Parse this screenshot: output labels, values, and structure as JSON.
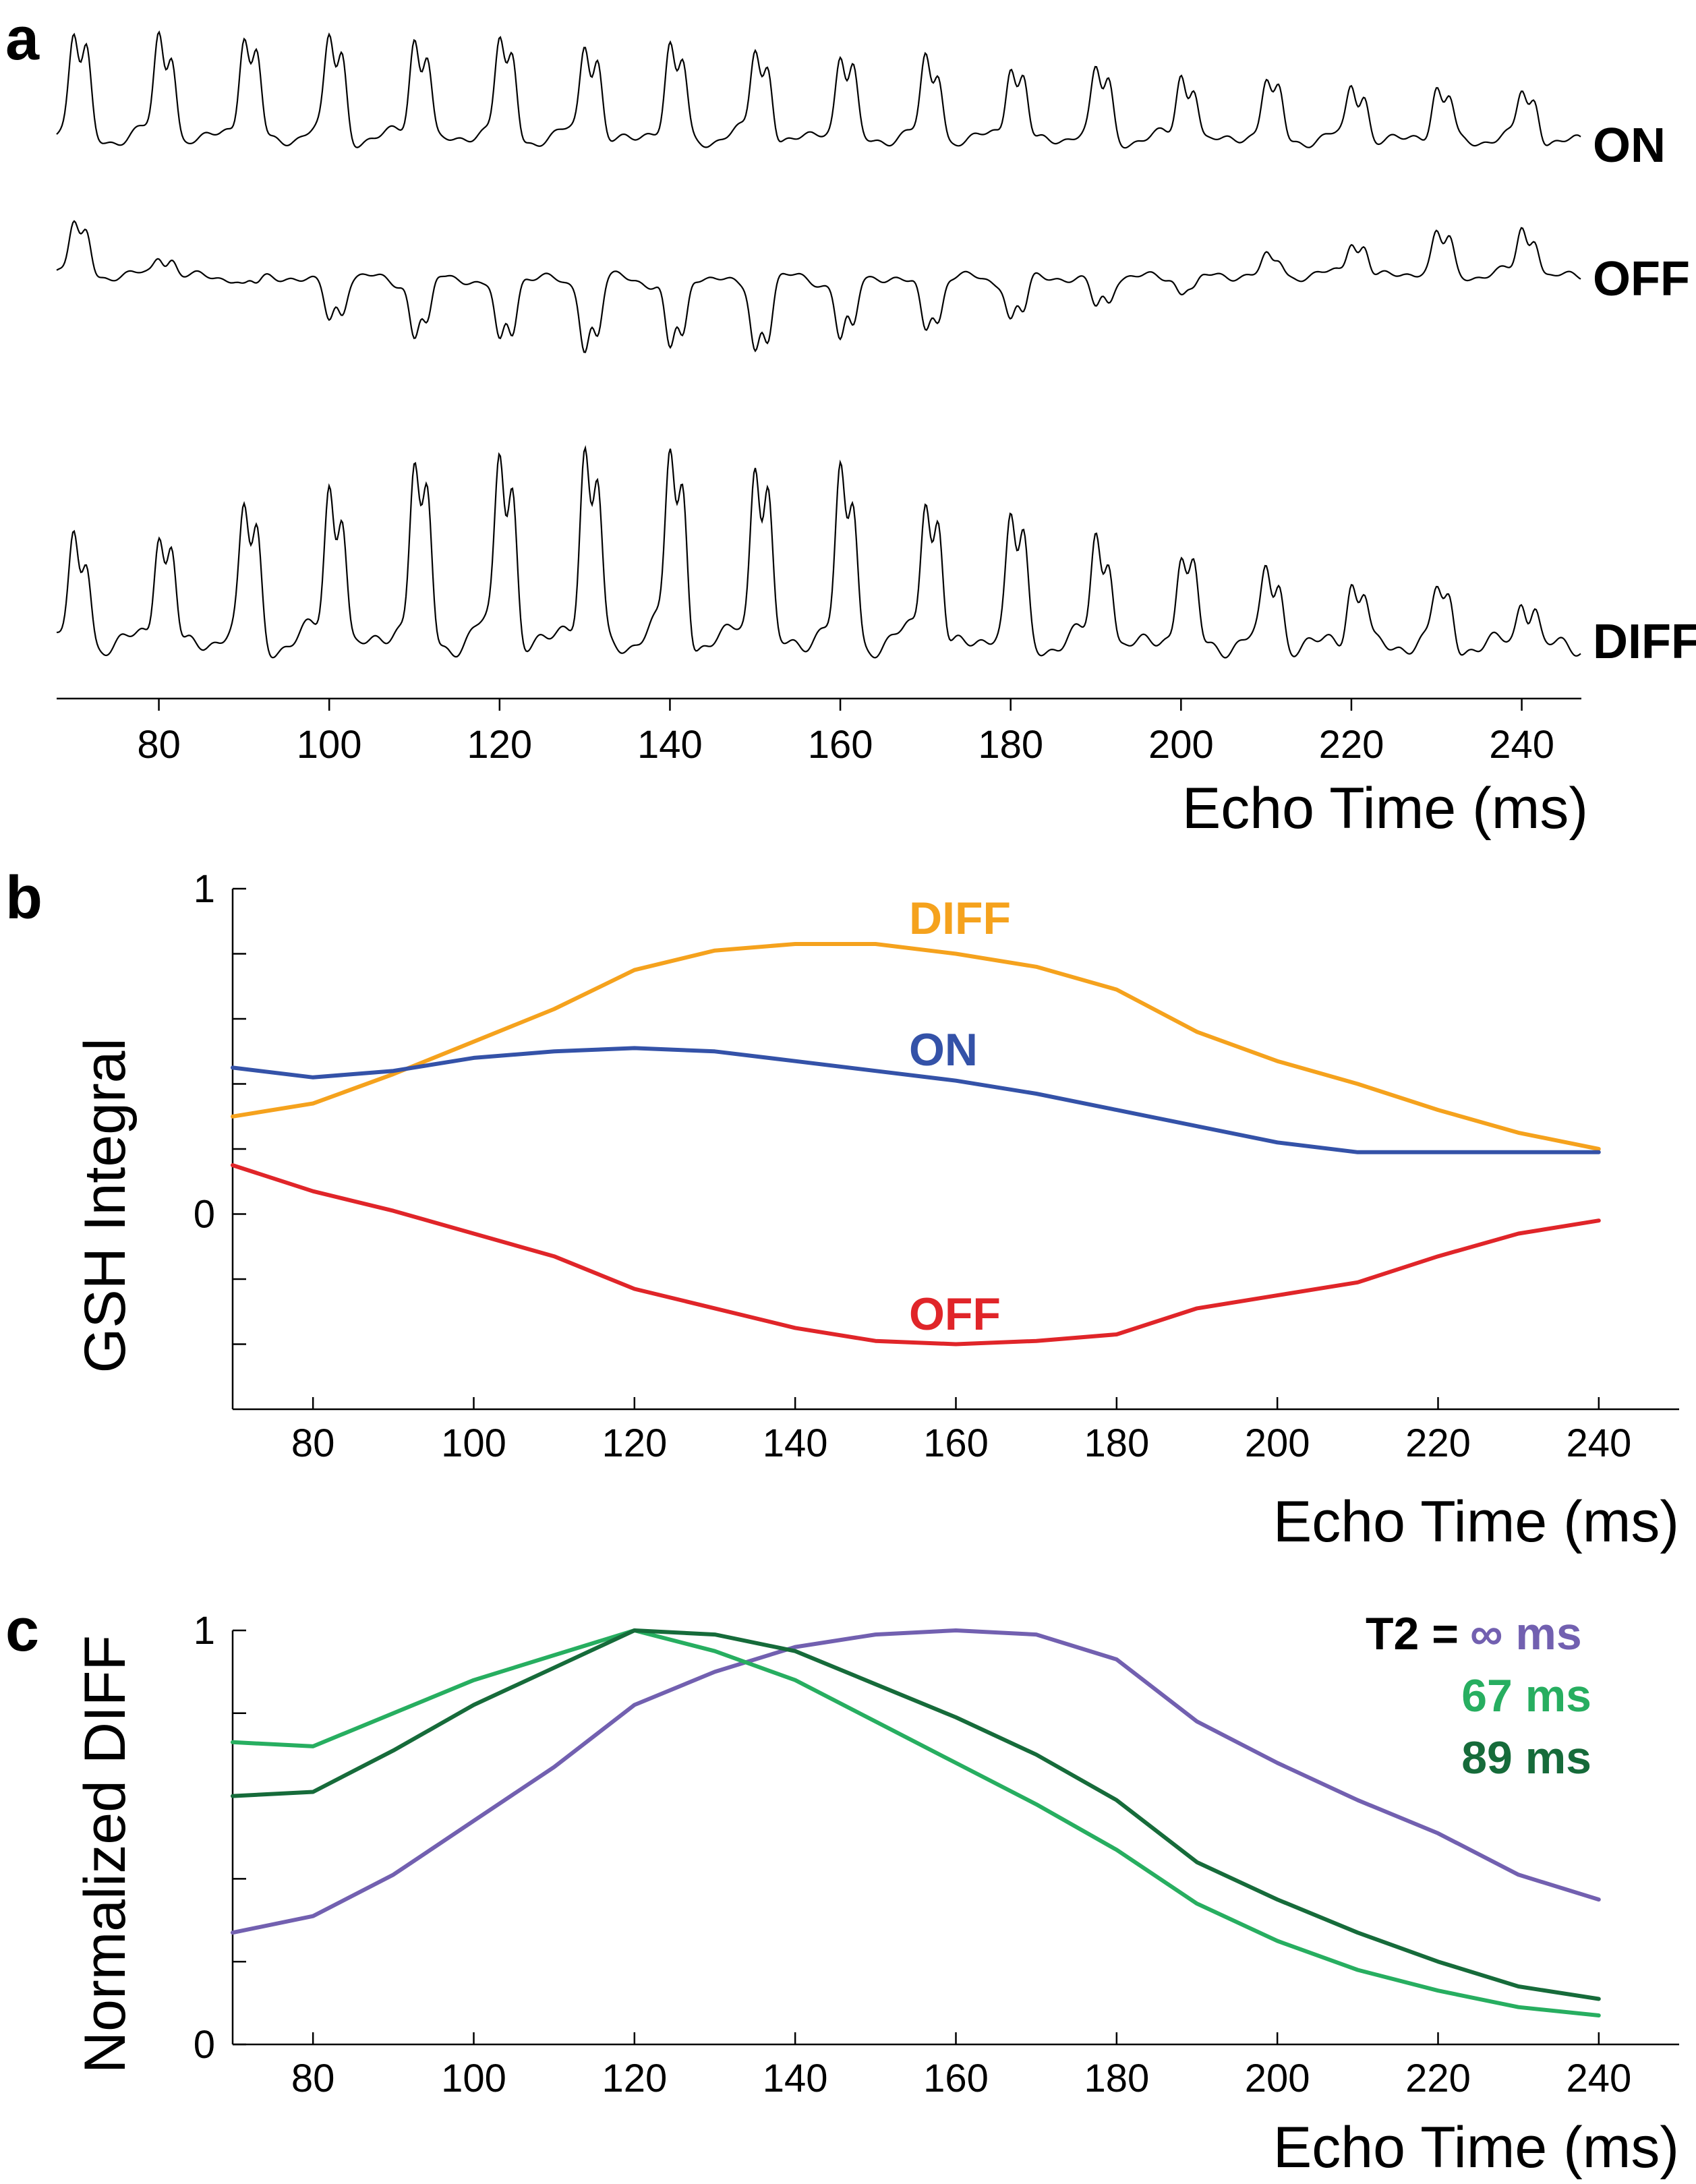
{
  "panel_labels": {
    "a": "a",
    "b": "b",
    "c": "c"
  },
  "chart_data": [
    {
      "type": "line",
      "panel": "a",
      "title": "",
      "xlabel": "Echo Time (ms)",
      "ylabel": "",
      "xlim": [
        68,
        247
      ],
      "xticks": [
        80,
        100,
        120,
        140,
        160,
        180,
        200,
        220,
        240
      ],
      "echo_times": [
        70,
        80,
        90,
        100,
        110,
        120,
        130,
        140,
        150,
        160,
        170,
        180,
        190,
        200,
        210,
        220,
        230,
        240
      ],
      "series": [
        {
          "name": "ON",
          "label": "ON",
          "color": "#000000",
          "peak_heights": [
            0.92,
            0.9,
            0.9,
            0.89,
            0.88,
            0.86,
            0.84,
            0.81,
            0.78,
            0.74,
            0.7,
            0.66,
            0.61,
            0.57,
            0.52,
            0.48,
            0.45,
            0.42
          ]
        },
        {
          "name": "OFF",
          "label": "OFF",
          "color": "#000000",
          "peak_heights": [
            0.55,
            0.22,
            -0.1,
            -0.45,
            -0.62,
            -0.7,
            -0.75,
            -0.77,
            -0.77,
            -0.66,
            -0.55,
            -0.45,
            -0.32,
            -0.15,
            0.2,
            0.38,
            0.46,
            0.5
          ]
        },
        {
          "name": "DIFF",
          "label": "DIFF",
          "color": "#000000",
          "peak_heights": [
            0.52,
            0.58,
            0.68,
            0.8,
            0.9,
            0.96,
            0.97,
            0.96,
            0.92,
            0.85,
            0.75,
            0.64,
            0.55,
            0.46,
            0.38,
            0.32,
            0.28,
            0.24
          ]
        }
      ]
    },
    {
      "type": "line",
      "panel": "b",
      "title": "",
      "xlabel": "Echo Time (ms)",
      "ylabel": "GSH Integral",
      "xlim": [
        70,
        250
      ],
      "ylim": [
        -0.6,
        1
      ],
      "xticks": [
        80,
        100,
        120,
        140,
        160,
        180,
        200,
        220,
        240
      ],
      "yticks_labeled": [
        "0",
        "1"
      ],
      "x": [
        70,
        80,
        90,
        100,
        110,
        120,
        130,
        140,
        150,
        160,
        170,
        180,
        190,
        200,
        210,
        220,
        230,
        240
      ],
      "series": [
        {
          "name": "DIFF",
          "label": "DIFF",
          "color": "#f5a21d",
          "values": [
            0.3,
            0.34,
            0.43,
            0.53,
            0.63,
            0.75,
            0.81,
            0.83,
            0.83,
            0.8,
            0.76,
            0.69,
            0.56,
            0.47,
            0.4,
            0.32,
            0.25,
            0.2
          ]
        },
        {
          "name": "ON",
          "label": "ON",
          "color": "#3452a8",
          "values": [
            0.45,
            0.42,
            0.44,
            0.48,
            0.5,
            0.51,
            0.5,
            0.47,
            0.44,
            0.41,
            0.37,
            0.32,
            0.27,
            0.22,
            0.19,
            0.19,
            0.19,
            0.19
          ]
        },
        {
          "name": "OFF",
          "label": "OFF",
          "color": "#e02529",
          "values": [
            0.15,
            0.07,
            0.01,
            -0.06,
            -0.13,
            -0.23,
            -0.29,
            -0.35,
            -0.39,
            -0.4,
            -0.39,
            -0.37,
            -0.29,
            -0.25,
            -0.21,
            -0.13,
            -0.06,
            -0.02
          ]
        }
      ]
    },
    {
      "type": "line",
      "panel": "c",
      "title": "",
      "xlabel": "Echo Time (ms)",
      "ylabel": "Normalized DIFF",
      "xlim": [
        70,
        250
      ],
      "ylim": [
        0,
        1
      ],
      "xticks": [
        80,
        100,
        120,
        140,
        160,
        180,
        200,
        220,
        240
      ],
      "yticks_labeled": [
        "0",
        "1"
      ],
      "legend_prefix": "T2 =",
      "x": [
        70,
        80,
        90,
        100,
        110,
        120,
        130,
        140,
        150,
        160,
        170,
        180,
        190,
        200,
        210,
        220,
        230,
        240
      ],
      "series": [
        {
          "name": "T2 = ∞ ms",
          "label": "∞ ms",
          "color": "#7260b0",
          "values": [
            0.27,
            0.31,
            0.41,
            0.54,
            0.67,
            0.82,
            0.9,
            0.96,
            0.99,
            1.0,
            0.99,
            0.93,
            0.78,
            0.68,
            0.59,
            0.51,
            0.41,
            0.35
          ]
        },
        {
          "name": "T2 = 67 ms",
          "label": "67 ms",
          "color": "#27ae60",
          "values": [
            0.73,
            0.72,
            0.8,
            0.88,
            0.94,
            1.0,
            0.95,
            0.88,
            0.78,
            0.68,
            0.58,
            0.47,
            0.34,
            0.25,
            0.18,
            0.13,
            0.09,
            0.07
          ]
        },
        {
          "name": "T2 = 89 ms",
          "label": "89 ms",
          "color": "#166b3a",
          "values": [
            0.6,
            0.61,
            0.71,
            0.82,
            0.91,
            1.0,
            0.99,
            0.95,
            0.87,
            0.79,
            0.7,
            0.59,
            0.44,
            0.35,
            0.27,
            0.2,
            0.14,
            0.11
          ]
        }
      ]
    }
  ]
}
